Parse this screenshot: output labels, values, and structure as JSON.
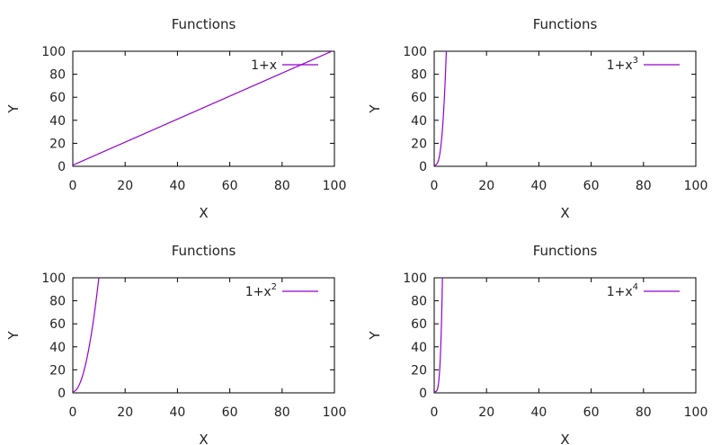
{
  "chart_data": [
    {
      "type": "line",
      "title": "Functions",
      "xlabel": "X",
      "ylabel": "Y",
      "xlim": [
        0,
        100
      ],
      "ylim": [
        0,
        100
      ],
      "xticks": [
        "0",
        "20",
        "40",
        "60",
        "80",
        "100"
      ],
      "yticks": [
        "0",
        "20",
        "40",
        "60",
        "80",
        "100"
      ],
      "grid": false,
      "legend_placement": "top-right",
      "series": [
        {
          "name": "1+x",
          "legend_base": "1+x",
          "legend_sup": "",
          "exponent": 1,
          "color": "#9400d3"
        }
      ]
    },
    {
      "type": "line",
      "title": "Functions",
      "xlabel": "X",
      "ylabel": "Y",
      "xlim": [
        0,
        100
      ],
      "ylim": [
        0,
        100
      ],
      "xticks": [
        "0",
        "20",
        "40",
        "60",
        "80",
        "100"
      ],
      "yticks": [
        "0",
        "20",
        "40",
        "60",
        "80",
        "100"
      ],
      "grid": false,
      "legend_placement": "top-right",
      "series": [
        {
          "name": "1+x^3",
          "legend_base": "1+x",
          "legend_sup": "3",
          "exponent": 3,
          "color": "#9400d3"
        }
      ]
    },
    {
      "type": "line",
      "title": "Functions",
      "xlabel": "X",
      "ylabel": "Y",
      "xlim": [
        0,
        100
      ],
      "ylim": [
        0,
        100
      ],
      "xticks": [
        "0",
        "20",
        "40",
        "60",
        "80",
        "100"
      ],
      "yticks": [
        "0",
        "20",
        "40",
        "60",
        "80",
        "100"
      ],
      "grid": false,
      "legend_placement": "top-right",
      "series": [
        {
          "name": "1+x^2",
          "legend_base": "1+x",
          "legend_sup": "2",
          "exponent": 2,
          "color": "#9400d3"
        }
      ]
    },
    {
      "type": "line",
      "title": "Functions",
      "xlabel": "X",
      "ylabel": "Y",
      "xlim": [
        0,
        100
      ],
      "ylim": [
        0,
        100
      ],
      "xticks": [
        "0",
        "20",
        "40",
        "60",
        "80",
        "100"
      ],
      "yticks": [
        "0",
        "20",
        "40",
        "60",
        "80",
        "100"
      ],
      "grid": false,
      "legend_placement": "top-right",
      "series": [
        {
          "name": "1+x^4",
          "legend_base": "1+x",
          "legend_sup": "4",
          "exponent": 4,
          "color": "#9400d3"
        }
      ]
    }
  ]
}
